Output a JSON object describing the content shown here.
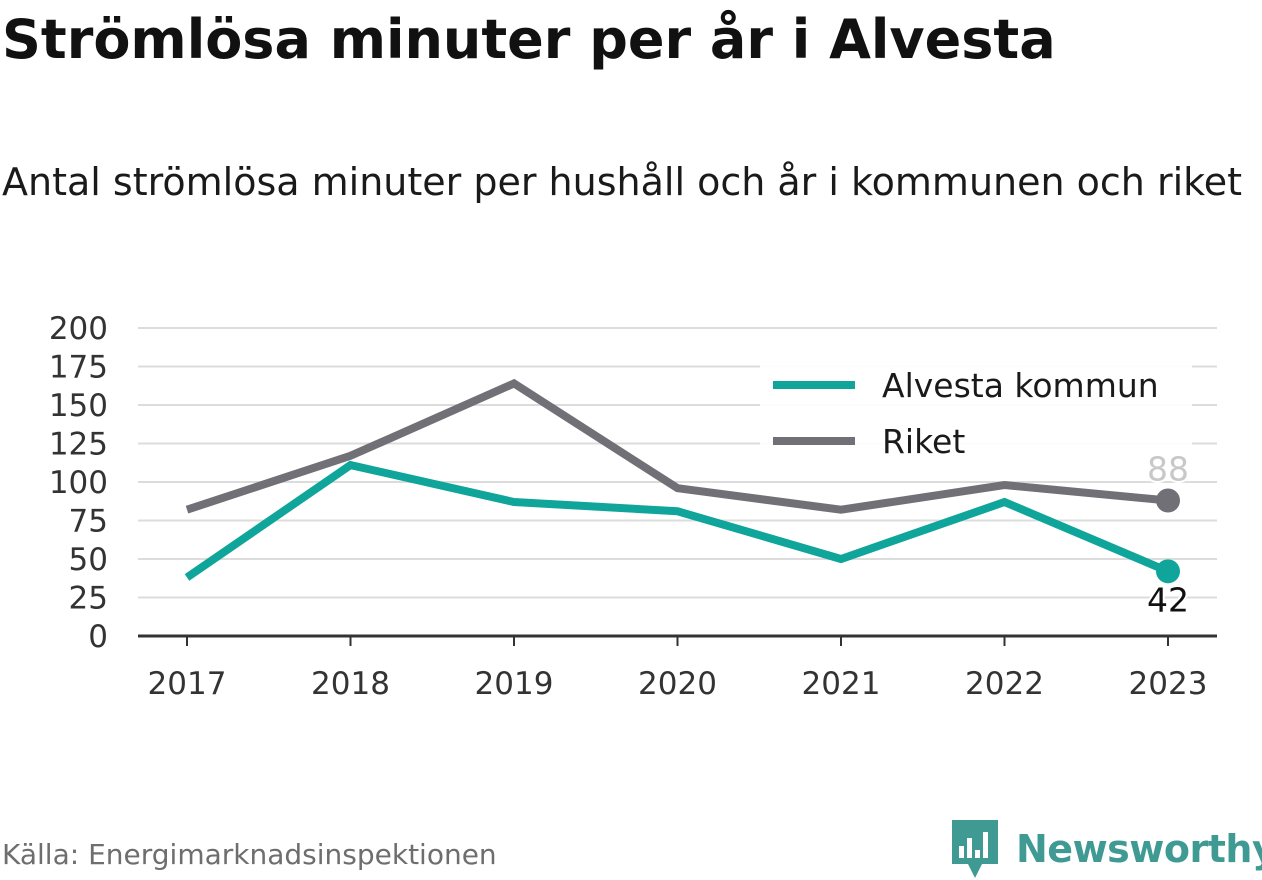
{
  "title": "Strömlösa minuter per år i Alvesta",
  "subtitle": "Antal strömlösa minuter per hushåll och år i kommunen och riket",
  "source": "Källa: Energimarknadsinspektionen",
  "brand": {
    "name": "Newsworthy",
    "icon": "newsworthy-logo-icon"
  },
  "colors": {
    "alvesta": "#10a59a",
    "riket": "#717076",
    "grid": "#dcdcdc",
    "axis": "#333333"
  },
  "chart_data": {
    "type": "line",
    "x": [
      "2017",
      "2018",
      "2019",
      "2020",
      "2021",
      "2022",
      "2023"
    ],
    "series": [
      {
        "name": "Alvesta kommun",
        "values": [
          38,
          111,
          87,
          81,
          50,
          87,
          42
        ],
        "color": "#10a59a",
        "end_label": "42"
      },
      {
        "name": "Riket",
        "values": [
          82,
          117,
          164,
          96,
          82,
          98,
          88
        ],
        "color": "#717076",
        "end_label": "88"
      }
    ],
    "yticks": [
      "0",
      "25",
      "50",
      "75",
      "100",
      "125",
      "150",
      "175",
      "200"
    ],
    "ylim": [
      0,
      200
    ],
    "grid": true,
    "legend_position": "top-right"
  }
}
